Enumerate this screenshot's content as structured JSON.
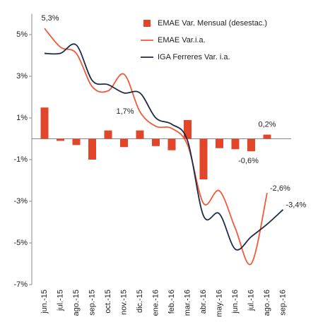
{
  "chart_data": {
    "type": "combo",
    "categories": [
      "jun.-15",
      "jul.-15",
      "ago.-15",
      "sep.-15",
      "oct.-15",
      "nov.-15",
      "dic.-15",
      "ene.-16",
      "feb.-16",
      "mar.-16",
      "abr.-16",
      "may.-16",
      "jun.-16",
      "jul.-16",
      "ago.-16",
      "sep.-16"
    ],
    "series": [
      {
        "name": "EMAE Var. Mensual (desestac.)",
        "kind": "bar",
        "color": "#e2462a",
        "values": [
          1.5,
          -0.1,
          -0.3,
          -1.0,
          0.4,
          -0.4,
          0.4,
          -0.35,
          -0.55,
          0.9,
          -1.95,
          -0.45,
          -0.5,
          -0.6,
          0.2,
          null
        ],
        "value_labels": [
          null,
          null,
          null,
          null,
          null,
          null,
          null,
          null,
          null,
          null,
          null,
          null,
          null,
          "-0,6%",
          "0,2%",
          null
        ]
      },
      {
        "name": "EMAE Var.i.a.",
        "kind": "line",
        "color": "#f05a3a",
        "values": [
          5.3,
          4.4,
          4.1,
          2.5,
          2.3,
          3.1,
          1.3,
          0.6,
          0.5,
          -0.3,
          -3.1,
          -2.5,
          -4.3,
          -6.0,
          -2.6,
          null
        ],
        "value_labels": [
          "5,3%",
          null,
          null,
          null,
          null,
          null,
          null,
          null,
          null,
          null,
          null,
          null,
          null,
          null,
          "-2,6%",
          null
        ]
      },
      {
        "name": "IGA Ferreres Var. i.a.",
        "kind": "line",
        "color": "#1f2a44",
        "values": [
          4.1,
          4.1,
          4.5,
          2.8,
          2.6,
          2.2,
          2.2,
          1.0,
          0.7,
          -0.1,
          -3.7,
          -3.6,
          -5.3,
          -4.7,
          -4.1,
          -3.4
        ],
        "value_labels": [
          null,
          null,
          null,
          null,
          null,
          null,
          null,
          null,
          null,
          null,
          null,
          null,
          null,
          null,
          null,
          "-3,4%"
        ]
      }
    ],
    "annotations": [
      "1,7%"
    ],
    "ylim": [
      -7,
      6
    ],
    "yticks": [
      {
        "value": 5,
        "label": "5%"
      },
      {
        "value": 3,
        "label": "3%"
      },
      {
        "value": 1,
        "label": "1%"
      },
      {
        "value": -1,
        "label": "-1%"
      },
      {
        "value": -3,
        "label": "-3%"
      },
      {
        "value": -5,
        "label": "-5%"
      },
      {
        "value": -7,
        "label": "-7%"
      }
    ],
    "legend": "upper right"
  }
}
